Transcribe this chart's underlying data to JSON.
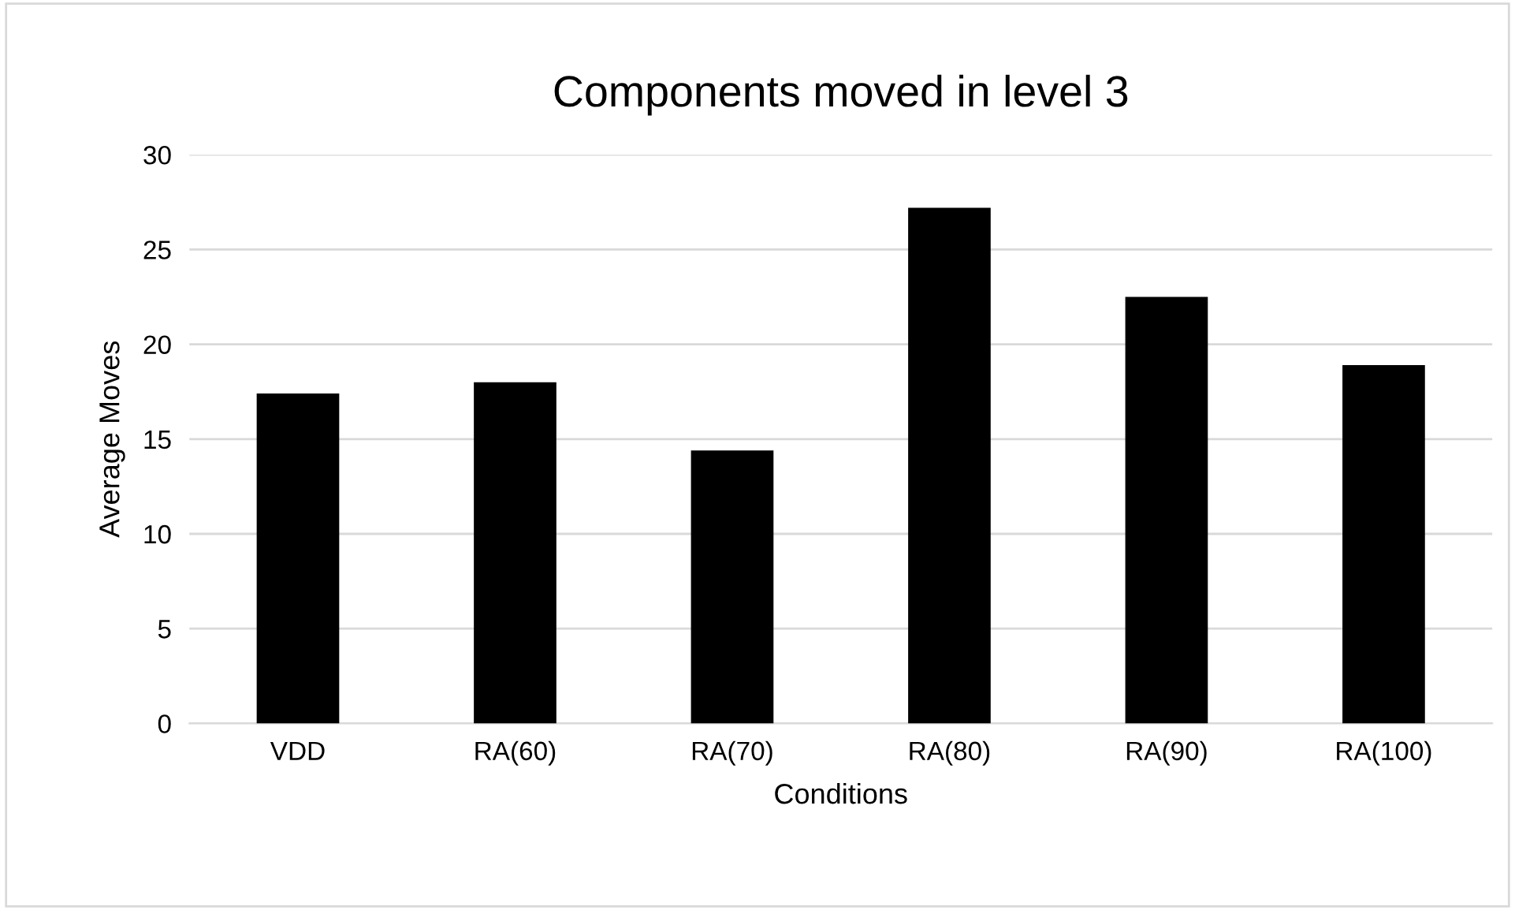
{
  "chart_data": {
    "type": "bar",
    "title": "Components moved in level 3",
    "xlabel": "Conditions",
    "ylabel": "Average Moves",
    "categories": [
      "VDD",
      "RA(60)",
      "RA(70)",
      "RA(80)",
      "RA(90)",
      "RA(100)"
    ],
    "values": [
      17.4,
      18.0,
      14.4,
      27.2,
      22.5,
      18.9
    ],
    "color": "#000000",
    "ylim": [
      0,
      30
    ],
    "yticks": [
      0,
      5,
      10,
      15,
      20,
      25,
      30
    ],
    "grid": "y",
    "legend": false
  }
}
